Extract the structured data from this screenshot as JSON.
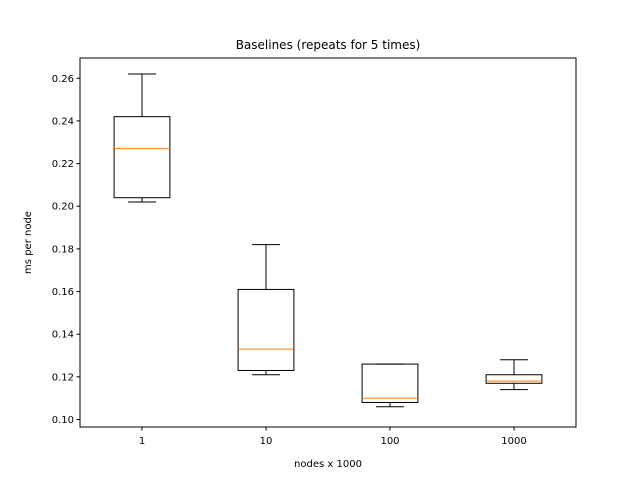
{
  "chart_data": {
    "type": "box",
    "title": "Baselines (repeats for 5 times)",
    "xlabel": "nodes x 1000",
    "ylabel": "ms per node",
    "categories": [
      "1",
      "10",
      "100",
      "1000"
    ],
    "boxes": [
      {
        "category": "1",
        "whisker_low": 0.202,
        "q1": 0.204,
        "median": 0.227,
        "q3": 0.242,
        "whisker_high": 0.262
      },
      {
        "category": "10",
        "whisker_low": 0.121,
        "q1": 0.123,
        "median": 0.133,
        "q3": 0.161,
        "whisker_high": 0.182
      },
      {
        "category": "100",
        "whisker_low": 0.106,
        "q1": 0.108,
        "median": 0.11,
        "q3": 0.126,
        "whisker_high": 0.126
      },
      {
        "category": "1000",
        "whisker_low": 0.114,
        "q1": 0.117,
        "median": 0.118,
        "q3": 0.121,
        "whisker_high": 0.128
      }
    ],
    "ylim": [
      0.0965,
      0.2695
    ],
    "yticks": [
      "0.10",
      "0.12",
      "0.14",
      "0.16",
      "0.18",
      "0.20",
      "0.22",
      "0.24",
      "0.26"
    ],
    "grid": false,
    "colors": {
      "box": "#000000",
      "median": "#ff7f0e"
    }
  }
}
